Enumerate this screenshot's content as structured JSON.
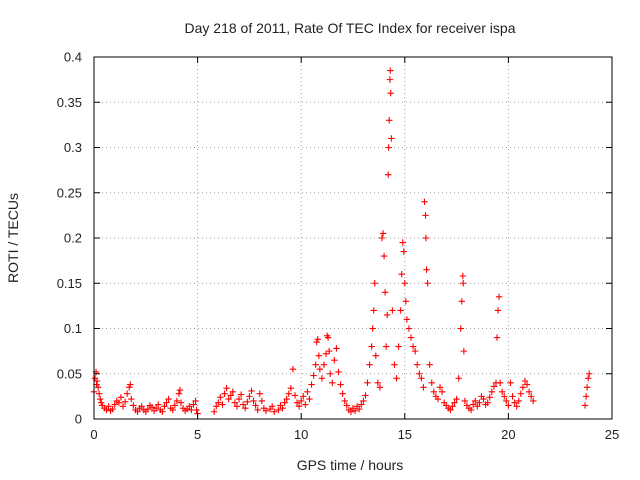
{
  "chart_data": {
    "type": "scatter",
    "title": "Day 218 of 2011, Rate Of TEC Index for receiver ispa",
    "xlabel": "GPS time / hours",
    "ylabel": "ROTI / TECUs",
    "xlim": [
      0,
      25
    ],
    "ylim": [
      0,
      0.4
    ],
    "xticks": [
      0,
      5,
      10,
      15,
      20,
      25
    ],
    "yticks": [
      0,
      0.05,
      0.1,
      0.15,
      0.2,
      0.25,
      0.3,
      0.35,
      0.4
    ],
    "ytick_labels": [
      "0",
      "0.05",
      "0.1",
      "0.15",
      "0.2",
      "0.25",
      "0.3",
      "0.35",
      "0.4"
    ],
    "grid": true,
    "legend": "none",
    "marker": "+",
    "color": "#ff0000",
    "series": [
      {
        "points": [
          [
            0.0,
            0.03
          ],
          [
            0.05,
            0.045
          ],
          [
            0.1,
            0.052
          ],
          [
            0.12,
            0.038
          ],
          [
            0.15,
            0.042
          ],
          [
            0.2,
            0.035
          ],
          [
            0.25,
            0.028
          ],
          [
            0.3,
            0.022
          ],
          [
            0.35,
            0.018
          ],
          [
            0.4,
            0.015
          ],
          [
            0.5,
            0.012
          ],
          [
            0.6,
            0.01
          ],
          [
            0.7,
            0.014
          ],
          [
            0.8,
            0.009
          ],
          [
            0.9,
            0.011
          ],
          [
            1.0,
            0.016
          ],
          [
            1.1,
            0.02
          ],
          [
            1.2,
            0.018
          ],
          [
            1.3,
            0.024
          ],
          [
            1.4,
            0.014
          ],
          [
            1.5,
            0.019
          ],
          [
            1.6,
            0.028
          ],
          [
            1.7,
            0.035
          ],
          [
            1.75,
            0.038
          ],
          [
            1.8,
            0.022
          ],
          [
            1.9,
            0.015
          ],
          [
            2.0,
            0.01
          ],
          [
            2.1,
            0.008
          ],
          [
            2.2,
            0.012
          ],
          [
            2.3,
            0.014
          ],
          [
            2.4,
            0.01
          ],
          [
            2.5,
            0.008
          ],
          [
            2.6,
            0.011
          ],
          [
            2.7,
            0.015
          ],
          [
            2.8,
            0.013
          ],
          [
            2.9,
            0.009
          ],
          [
            3.0,
            0.012
          ],
          [
            3.1,
            0.016
          ],
          [
            3.2,
            0.01
          ],
          [
            3.3,
            0.008
          ],
          [
            3.4,
            0.014
          ],
          [
            3.5,
            0.018
          ],
          [
            3.6,
            0.022
          ],
          [
            3.7,
            0.012
          ],
          [
            3.8,
            0.01
          ],
          [
            3.9,
            0.015
          ],
          [
            4.0,
            0.02
          ],
          [
            4.1,
            0.028
          ],
          [
            4.15,
            0.032
          ],
          [
            4.2,
            0.018
          ],
          [
            4.3,
            0.012
          ],
          [
            4.4,
            0.009
          ],
          [
            4.5,
            0.011
          ],
          [
            4.6,
            0.014
          ],
          [
            4.7,
            0.01
          ],
          [
            4.8,
            0.016
          ],
          [
            4.9,
            0.02
          ],
          [
            4.95,
            0.01
          ],
          [
            5.0,
            0.006
          ],
          [
            5.8,
            0.008
          ],
          [
            5.9,
            0.014
          ],
          [
            6.0,
            0.018
          ],
          [
            6.1,
            0.024
          ],
          [
            6.2,
            0.016
          ],
          [
            6.3,
            0.028
          ],
          [
            6.4,
            0.034
          ],
          [
            6.5,
            0.022
          ],
          [
            6.6,
            0.026
          ],
          [
            6.7,
            0.03
          ],
          [
            6.8,
            0.018
          ],
          [
            6.9,
            0.014
          ],
          [
            7.0,
            0.022
          ],
          [
            7.1,
            0.027
          ],
          [
            7.2,
            0.016
          ],
          [
            7.3,
            0.012
          ],
          [
            7.4,
            0.019
          ],
          [
            7.5,
            0.025
          ],
          [
            7.6,
            0.031
          ],
          [
            7.7,
            0.02
          ],
          [
            7.8,
            0.015
          ],
          [
            7.9,
            0.01
          ],
          [
            8.0,
            0.028
          ],
          [
            8.1,
            0.02
          ],
          [
            8.2,
            0.012
          ],
          [
            8.3,
            0.009
          ],
          [
            8.5,
            0.011
          ],
          [
            8.6,
            0.014
          ],
          [
            8.7,
            0.008
          ],
          [
            8.9,
            0.01
          ],
          [
            9.0,
            0.015
          ],
          [
            9.1,
            0.012
          ],
          [
            9.2,
            0.018
          ],
          [
            9.3,
            0.022
          ],
          [
            9.4,
            0.028
          ],
          [
            9.5,
            0.034
          ],
          [
            9.6,
            0.055
          ],
          [
            9.7,
            0.026
          ],
          [
            9.8,
            0.018
          ],
          [
            9.9,
            0.014
          ],
          [
            10.0,
            0.02
          ],
          [
            10.1,
            0.025
          ],
          [
            10.2,
            0.016
          ],
          [
            10.3,
            0.03
          ],
          [
            10.4,
            0.022
          ],
          [
            10.5,
            0.038
          ],
          [
            10.6,
            0.048
          ],
          [
            10.7,
            0.06
          ],
          [
            10.75,
            0.085
          ],
          [
            10.8,
            0.088
          ],
          [
            10.85,
            0.07
          ],
          [
            10.9,
            0.055
          ],
          [
            11.0,
            0.045
          ],
          [
            11.1,
            0.06
          ],
          [
            11.2,
            0.072
          ],
          [
            11.25,
            0.092
          ],
          [
            11.3,
            0.09
          ],
          [
            11.35,
            0.075
          ],
          [
            11.4,
            0.05
          ],
          [
            11.5,
            0.04
          ],
          [
            11.6,
            0.065
          ],
          [
            11.7,
            0.078
          ],
          [
            11.8,
            0.052
          ],
          [
            11.9,
            0.038
          ],
          [
            12.0,
            0.028
          ],
          [
            12.1,
            0.02
          ],
          [
            12.2,
            0.015
          ],
          [
            12.3,
            0.01
          ],
          [
            12.4,
            0.008
          ],
          [
            12.5,
            0.012
          ],
          [
            12.6,
            0.009
          ],
          [
            12.7,
            0.014
          ],
          [
            12.8,
            0.011
          ],
          [
            12.9,
            0.016
          ],
          [
            13.0,
            0.02
          ],
          [
            13.1,
            0.026
          ],
          [
            13.2,
            0.04
          ],
          [
            13.3,
            0.06
          ],
          [
            13.4,
            0.08
          ],
          [
            13.45,
            0.1
          ],
          [
            13.5,
            0.12
          ],
          [
            13.55,
            0.15
          ],
          [
            13.6,
            0.07
          ],
          [
            13.7,
            0.04
          ],
          [
            13.8,
            0.035
          ],
          [
            13.9,
            0.2
          ],
          [
            13.95,
            0.205
          ],
          [
            14.0,
            0.18
          ],
          [
            14.05,
            0.14
          ],
          [
            14.1,
            0.08
          ],
          [
            14.15,
            0.115
          ],
          [
            14.2,
            0.27
          ],
          [
            14.22,
            0.3
          ],
          [
            14.25,
            0.33
          ],
          [
            14.28,
            0.375
          ],
          [
            14.3,
            0.385
          ],
          [
            14.32,
            0.36
          ],
          [
            14.35,
            0.31
          ],
          [
            14.4,
            0.12
          ],
          [
            14.5,
            0.06
          ],
          [
            14.6,
            0.045
          ],
          [
            14.7,
            0.08
          ],
          [
            14.8,
            0.12
          ],
          [
            14.85,
            0.16
          ],
          [
            14.9,
            0.195
          ],
          [
            14.95,
            0.185
          ],
          [
            15.0,
            0.15
          ],
          [
            15.05,
            0.13
          ],
          [
            15.1,
            0.11
          ],
          [
            15.2,
            0.1
          ],
          [
            15.3,
            0.09
          ],
          [
            15.4,
            0.08
          ],
          [
            15.5,
            0.075
          ],
          [
            15.6,
            0.06
          ],
          [
            15.7,
            0.05
          ],
          [
            15.8,
            0.045
          ],
          [
            15.9,
            0.035
          ],
          [
            15.95,
            0.24
          ],
          [
            16.0,
            0.225
          ],
          [
            16.02,
            0.2
          ],
          [
            16.05,
            0.165
          ],
          [
            16.1,
            0.15
          ],
          [
            16.2,
            0.06
          ],
          [
            16.3,
            0.04
          ],
          [
            16.4,
            0.03
          ],
          [
            16.5,
            0.025
          ],
          [
            16.6,
            0.022
          ],
          [
            16.7,
            0.035
          ],
          [
            16.8,
            0.03
          ],
          [
            16.9,
            0.018
          ],
          [
            17.0,
            0.015
          ],
          [
            17.1,
            0.012
          ],
          [
            17.2,
            0.01
          ],
          [
            17.3,
            0.014
          ],
          [
            17.4,
            0.018
          ],
          [
            17.5,
            0.022
          ],
          [
            17.6,
            0.045
          ],
          [
            17.7,
            0.1
          ],
          [
            17.75,
            0.13
          ],
          [
            17.8,
            0.158
          ],
          [
            17.82,
            0.15
          ],
          [
            17.85,
            0.075
          ],
          [
            17.9,
            0.02
          ],
          [
            18.0,
            0.015
          ],
          [
            18.1,
            0.012
          ],
          [
            18.2,
            0.01
          ],
          [
            18.3,
            0.016
          ],
          [
            18.4,
            0.02
          ],
          [
            18.5,
            0.014
          ],
          [
            18.6,
            0.018
          ],
          [
            18.7,
            0.025
          ],
          [
            18.8,
            0.022
          ],
          [
            18.9,
            0.016
          ],
          [
            19.0,
            0.018
          ],
          [
            19.1,
            0.024
          ],
          [
            19.2,
            0.03
          ],
          [
            19.3,
            0.036
          ],
          [
            19.4,
            0.04
          ],
          [
            19.45,
            0.09
          ],
          [
            19.5,
            0.12
          ],
          [
            19.55,
            0.135
          ],
          [
            19.6,
            0.04
          ],
          [
            19.7,
            0.03
          ],
          [
            19.8,
            0.025
          ],
          [
            19.9,
            0.02
          ],
          [
            20.0,
            0.015
          ],
          [
            20.1,
            0.04
          ],
          [
            20.2,
            0.025
          ],
          [
            20.3,
            0.018
          ],
          [
            20.4,
            0.014
          ],
          [
            20.5,
            0.02
          ],
          [
            20.6,
            0.028
          ],
          [
            20.7,
            0.035
          ],
          [
            20.8,
            0.042
          ],
          [
            20.9,
            0.038
          ],
          [
            21.0,
            0.03
          ],
          [
            21.1,
            0.025
          ],
          [
            21.2,
            0.02
          ],
          [
            23.7,
            0.015
          ],
          [
            23.75,
            0.025
          ],
          [
            23.8,
            0.035
          ],
          [
            23.85,
            0.045
          ],
          [
            23.9,
            0.05
          ]
        ]
      }
    ]
  }
}
